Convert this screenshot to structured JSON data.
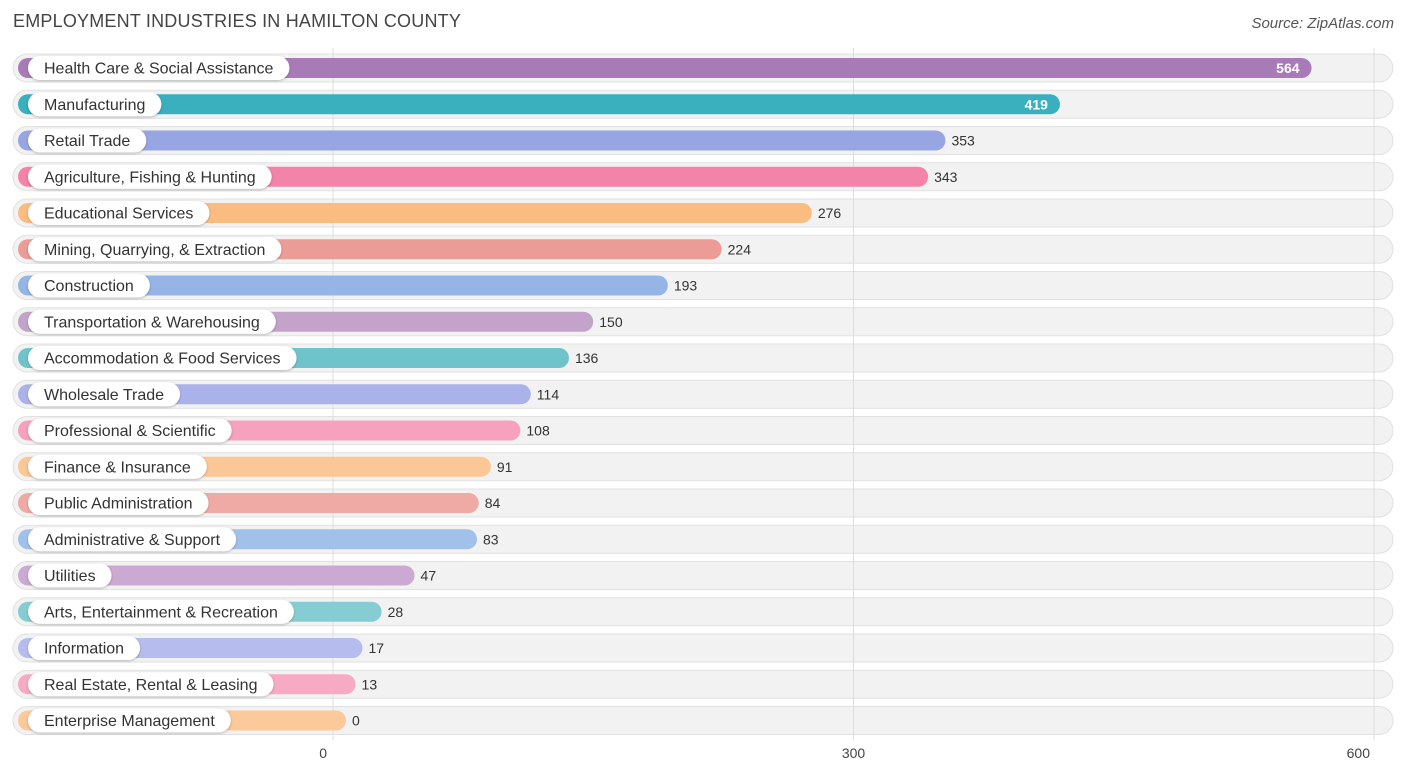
{
  "header": {
    "title": "EMPLOYMENT INDUSTRIES IN HAMILTON COUNTY",
    "source": "Source: ZipAtlas.com"
  },
  "chart_data": {
    "type": "bar",
    "orientation": "horizontal",
    "title": "EMPLOYMENT INDUSTRIES IN HAMILTON COUNTY",
    "xlabel": "",
    "ylabel": "",
    "xlim": [
      0,
      600
    ],
    "xticks": [
      0,
      300,
      600
    ],
    "grid": true,
    "categories": [
      "Health Care & Social Assistance",
      "Manufacturing",
      "Retail Trade",
      "Agriculture, Fishing & Hunting",
      "Educational Services",
      "Mining, Quarrying, & Extraction",
      "Construction",
      "Transportation & Warehousing",
      "Accommodation & Food Services",
      "Wholesale Trade",
      "Professional & Scientific",
      "Finance & Insurance",
      "Public Administration",
      "Administrative & Support",
      "Utilities",
      "Arts, Entertainment & Recreation",
      "Information",
      "Real Estate, Rental & Leasing",
      "Enterprise Management"
    ],
    "values": [
      564,
      419,
      353,
      343,
      276,
      224,
      193,
      150,
      136,
      114,
      108,
      91,
      84,
      83,
      47,
      28,
      17,
      13,
      0
    ],
    "colors": [
      "#a87bb8",
      "#3aafbe",
      "#97a6e2",
      "#f383a8",
      "#fbbc82",
      "#ec9c97",
      "#94b5e6",
      "#c4a3cb",
      "#6fc4cc",
      "#aab2e9",
      "#f6a1bd",
      "#fbc796",
      "#f0aaa6",
      "#a2c1ea",
      "#cca9d3",
      "#86cdd3",
      "#b6bdee",
      "#f7aac4",
      "#fbc99a"
    ]
  }
}
